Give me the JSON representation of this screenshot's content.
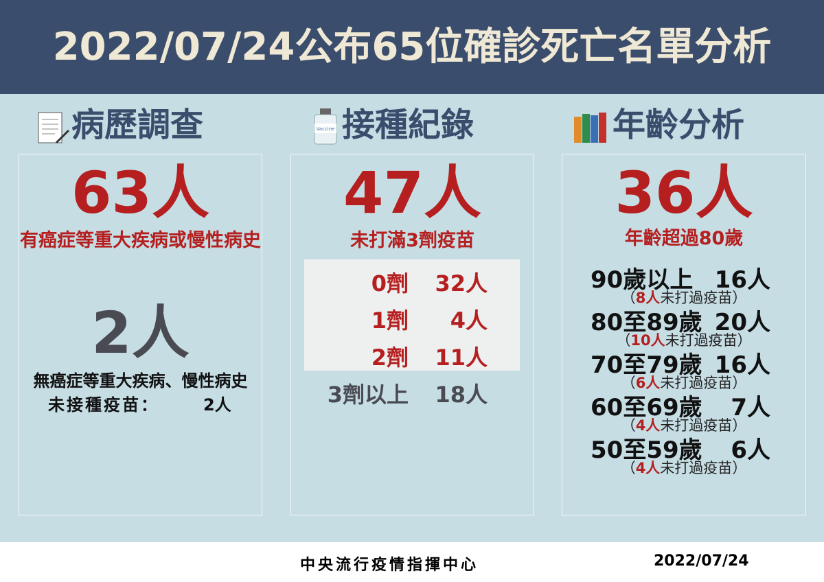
{
  "header": {
    "title": "2022/07/24公布65位確診死亡名單分析"
  },
  "sections": [
    {
      "heading": "病歷調查",
      "big": "63人",
      "sub": "有癌症等重大疾病或慢性病史",
      "big2": "2人",
      "note": "無癌症等重大疾病、慢性病史",
      "note2_label": "未接種疫苗：",
      "note2_value": "2人"
    },
    {
      "heading": "接種紀錄",
      "big": "47人",
      "sub": "未打滿3劑疫苗",
      "rows": [
        [
          "0劑",
          "32人"
        ],
        [
          "1劑",
          "4人"
        ],
        [
          "2劑",
          "11人"
        ],
        [
          "3劑以上",
          "18人"
        ]
      ]
    },
    {
      "heading": "年齡分析",
      "big": "36人",
      "sub": "年齡超過80歲",
      "note_open": "（",
      "note_close": "）",
      "rows": [
        {
          "label": "90歲以上",
          "count": "16人",
          "unvax": "8人",
          "unvax_text": "未打過疫苗"
        },
        {
          "label": "80至89歲",
          "count": "20人",
          "unvax": "10人",
          "unvax_text": "未打過疫苗"
        },
        {
          "label": "70至79歲",
          "count": "16人",
          "unvax": "6人",
          "unvax_text": "未打過疫苗"
        },
        {
          "label": "60至69歲",
          "count": "7人",
          "unvax": "4人",
          "unvax_text": "未打過疫苗"
        },
        {
          "label": "50至59歲",
          "count": "6人",
          "unvax": "4人",
          "unvax_text": "未打過疫苗"
        }
      ]
    }
  ],
  "footer": {
    "org": "中央流行疫情指揮中心",
    "date": "2022/07/24"
  }
}
